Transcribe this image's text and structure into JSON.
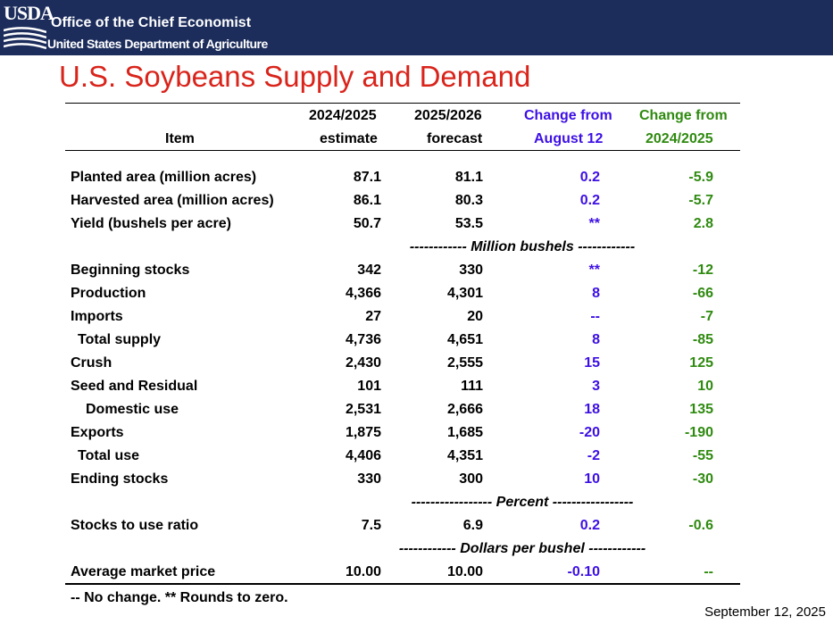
{
  "header": {
    "logo_text": "USDA",
    "office": "Office of the Chief Economist",
    "department": "United States Department of Agriculture"
  },
  "title": "U.S. Soybeans Supply and Demand",
  "columns": {
    "item": "Item",
    "estimate_top": "2024/2025",
    "estimate_bottom": "estimate",
    "forecast_top": "2025/2026",
    "forecast_bottom": "forecast",
    "change_aug_top": "Change from",
    "change_aug_bottom": "August 12",
    "change_prev_top": "Change from",
    "change_prev_bottom": "2024/2025"
  },
  "sections": {
    "million_bushels": "------------ Million bushels ------------",
    "percent": "----------------- Percent -----------------",
    "dollars": "------------ Dollars per bushel ------------"
  },
  "rows": [
    {
      "item": "Planted area (million acres)",
      "estimate": "87.1",
      "forecast": "81.1",
      "change_aug": "0.2",
      "change_prev": "-5.9"
    },
    {
      "item": "Harvested area (million acres)",
      "estimate": "86.1",
      "forecast": "80.3",
      "change_aug": "0.2",
      "change_prev": "-5.7"
    },
    {
      "item": "Yield (bushels per acre)",
      "estimate": "50.7",
      "forecast": "53.5",
      "change_aug": "**",
      "change_prev": "2.8"
    },
    {
      "item": "Beginning stocks",
      "estimate": "342",
      "forecast": "330",
      "change_aug": "**",
      "change_prev": "-12"
    },
    {
      "item": "Production",
      "estimate": "4,366",
      "forecast": "4,301",
      "change_aug": "8",
      "change_prev": "-66"
    },
    {
      "item": "Imports",
      "estimate": "27",
      "forecast": "20",
      "change_aug": "--",
      "change_prev": "-7"
    },
    {
      "item": "Total supply",
      "estimate": "4,736",
      "forecast": "4,651",
      "change_aug": "8",
      "change_prev": "-85"
    },
    {
      "item": "Crush",
      "estimate": "2,430",
      "forecast": "2,555",
      "change_aug": "15",
      "change_prev": "125"
    },
    {
      "item": "Seed and Residual",
      "estimate": "101",
      "forecast": "111",
      "change_aug": "3",
      "change_prev": "10"
    },
    {
      "item": "Domestic use",
      "estimate": "2,531",
      "forecast": "2,666",
      "change_aug": "18",
      "change_prev": "135"
    },
    {
      "item": "Exports",
      "estimate": "1,875",
      "forecast": "1,685",
      "change_aug": "-20",
      "change_prev": "-190"
    },
    {
      "item": "Total use",
      "estimate": "4,406",
      "forecast": "4,351",
      "change_aug": "-2",
      "change_prev": "-55"
    },
    {
      "item": "Ending stocks",
      "estimate": "330",
      "forecast": "300",
      "change_aug": "10",
      "change_prev": "-30"
    },
    {
      "item": "Stocks to use ratio",
      "estimate": "7.5",
      "forecast": "6.9",
      "change_aug": "0.2",
      "change_prev": "-0.6"
    },
    {
      "item": "Average market price",
      "estimate": "10.00",
      "forecast": "10.00",
      "change_aug": "-0.10",
      "change_prev": "--"
    }
  ],
  "footnote": "-- No change. ** Rounds to zero.",
  "date": "September 12, 2025",
  "colors": {
    "banner": "#1c2d5c",
    "title": "#d9241b",
    "change_aug": "#3d0fe5",
    "change_prev": "#2f8a10"
  }
}
